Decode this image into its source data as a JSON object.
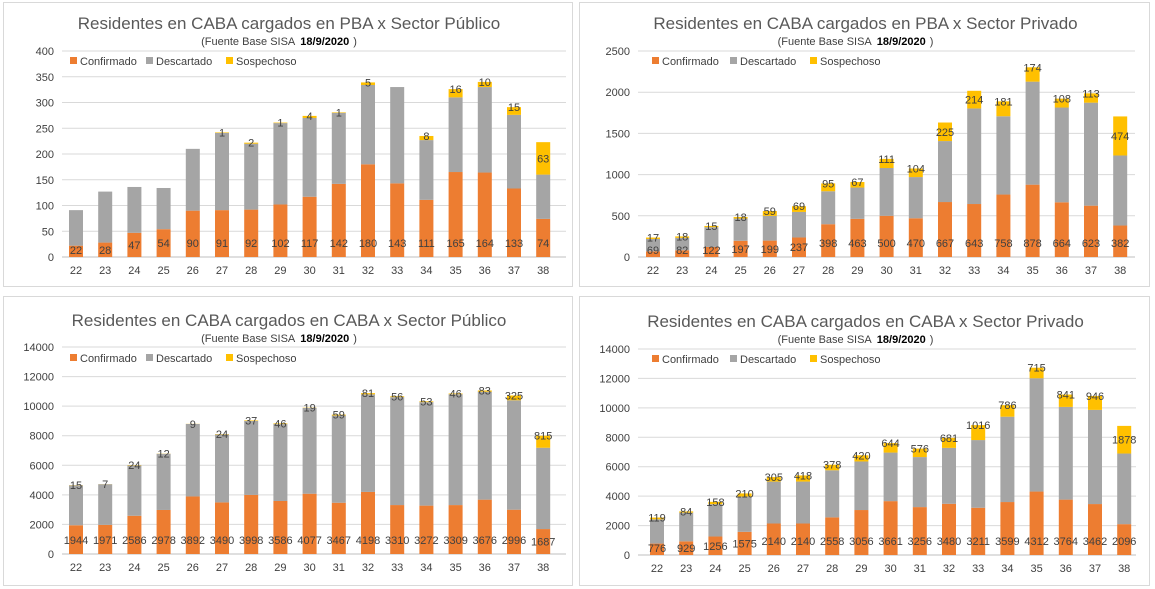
{
  "colors": {
    "confirmado": "#ED7D31",
    "descartado": "#A5A5A5",
    "sospechoso": "#FFC000",
    "grid": "#D9D9D9",
    "axis": "#BFBFBF"
  },
  "chart_data": [
    {
      "type": "bar",
      "stacked": true,
      "title": "Residentes en CABA cargados en PBA x Sector Público",
      "subtitle": "(Fuente  Base SISA",
      "date": "18/9/2020",
      "subtitle_close": ")",
      "categories": [
        "22",
        "23",
        "24",
        "25",
        "26",
        "27",
        "28",
        "29",
        "30",
        "31",
        "32",
        "33",
        "34",
        "35",
        "36",
        "37",
        "38"
      ],
      "ylim": [
        0,
        400
      ],
      "yticks": [
        "0",
        "50",
        "100",
        "150",
        "200",
        "250",
        "300",
        "350",
        "400"
      ],
      "legend_position": "top-left",
      "grid": true,
      "series": [
        {
          "name": "Confirmado",
          "values": [
            22,
            28,
            47,
            54,
            90,
            91,
            92,
            102,
            117,
            142,
            180,
            143,
            111,
            165,
            164,
            133,
            74
          ],
          "labels": [
            "22",
            "28",
            "47",
            "54",
            "90",
            "91",
            "92",
            "102",
            "117",
            "142",
            "180",
            "143",
            "111",
            "165",
            "164",
            "133",
            "74"
          ]
        },
        {
          "name": "Descartado",
          "values": [
            69,
            99,
            89,
            80,
            120,
            150,
            128,
            158,
            153,
            138,
            154,
            187,
            116,
            145,
            166,
            143,
            86
          ]
        },
        {
          "name": "Sospechoso",
          "values": [
            0,
            0,
            0,
            0,
            0,
            1,
            2,
            1,
            4,
            1,
            5,
            0,
            8,
            16,
            10,
            15,
            63
          ],
          "labels": [
            "",
            "",
            "",
            "",
            "",
            "1",
            "2",
            "1",
            "4",
            "1",
            "5",
            "",
            "8",
            "16",
            "10",
            "15",
            "63"
          ]
        }
      ]
    },
    {
      "type": "bar",
      "stacked": true,
      "title": "Residentes en CABA cargados en PBA x Sector Privado",
      "subtitle": "(Fuente  Base SISA",
      "date": "18/9/2020",
      "subtitle_close": ")",
      "categories": [
        "22",
        "23",
        "24",
        "25",
        "26",
        "27",
        "28",
        "29",
        "30",
        "31",
        "32",
        "33",
        "34",
        "35",
        "36",
        "37",
        "38"
      ],
      "ylim": [
        0,
        2500
      ],
      "yticks": [
        "0",
        "500",
        "1000",
        "1500",
        "2000",
        "2500"
      ],
      "legend_position": "top-left",
      "grid": true,
      "series": [
        {
          "name": "Confirmado",
          "values": [
            69,
            82,
            122,
            197,
            199,
            237,
            398,
            463,
            500,
            470,
            667,
            643,
            758,
            878,
            664,
            623,
            382
          ],
          "labels": [
            "69",
            "82",
            "122",
            "197",
            "199",
            "237",
            "398",
            "463",
            "500",
            "470",
            "667",
            "643",
            "758",
            "878",
            "664",
            "623",
            "382"
          ]
        },
        {
          "name": "Descartado",
          "values": [
            150,
            150,
            240,
            270,
            300,
            310,
            400,
            380,
            580,
            500,
            740,
            1160,
            950,
            1250,
            1150,
            1250,
            850
          ]
        },
        {
          "name": "Sospechoso",
          "values": [
            17,
            18,
            15,
            18,
            59,
            69,
            95,
            67,
            111,
            104,
            225,
            214,
            181,
            174,
            108,
            113,
            474
          ],
          "labels": [
            "17",
            "18",
            "15",
            "18",
            "59",
            "69",
            "95",
            "67",
            "111",
            "104",
            "225",
            "214",
            "181",
            "174",
            "108",
            "113",
            "474"
          ]
        }
      ]
    },
    {
      "type": "bar",
      "stacked": true,
      "title": "Residentes en CABA cargados en CABA x Sector Público",
      "subtitle": "(Fuente  Base SISA",
      "date": "18/9/2020",
      "subtitle_close": ")",
      "categories": [
        "22",
        "23",
        "24",
        "25",
        "26",
        "27",
        "28",
        "29",
        "30",
        "31",
        "32",
        "33",
        "34",
        "35",
        "36",
        "37",
        "38"
      ],
      "ylim": [
        0,
        14000
      ],
      "yticks": [
        "0",
        "2000",
        "4000",
        "6000",
        "8000",
        "10000",
        "12000",
        "14000"
      ],
      "legend_position": "top-left",
      "grid": true,
      "series": [
        {
          "name": "Confirmado",
          "values": [
            1944,
            1971,
            2586,
            2978,
            3892,
            3490,
            3998,
            3586,
            4077,
            3467,
            4198,
            3310,
            3272,
            3309,
            3676,
            2996,
            1687
          ],
          "labels": [
            "1944",
            "1971",
            "2586",
            "2978",
            "3892",
            "3490",
            "3998",
            "3586",
            "4077",
            "3467",
            "4198",
            "3310",
            "3272",
            "3309",
            "3676",
            "2996",
            "1687"
          ]
        },
        {
          "name": "Descartado",
          "values": [
            2700,
            2750,
            3400,
            3800,
            4900,
            4600,
            5000,
            5200,
            5800,
            5900,
            6600,
            7300,
            7000,
            7500,
            7300,
            7400,
            5500
          ]
        },
        {
          "name": "Sospechoso",
          "values": [
            15,
            7,
            24,
            12,
            9,
            24,
            37,
            46,
            19,
            59,
            81,
            56,
            53,
            46,
            83,
            325,
            815
          ],
          "labels": [
            "15",
            "7",
            "24",
            "12",
            "9",
            "24",
            "37",
            "46",
            "19",
            "59",
            "81",
            "56",
            "53",
            "46",
            "83",
            "325",
            "815"
          ]
        }
      ]
    },
    {
      "type": "bar",
      "stacked": true,
      "title": "Residentes en CABA cargados en CABA x Sector Privado",
      "subtitle": "(Fuente  Base SISA",
      "date": "18/9/2020",
      "subtitle_close": ")",
      "categories": [
        "22",
        "23",
        "24",
        "25",
        "26",
        "27",
        "28",
        "29",
        "30",
        "31",
        "32",
        "33",
        "34",
        "35",
        "36",
        "37",
        "38"
      ],
      "ylim": [
        0,
        14000
      ],
      "yticks": [
        "0",
        "2000",
        "4000",
        "6000",
        "8000",
        "10000",
        "12000",
        "14000"
      ],
      "legend_position": "top-left",
      "grid": true,
      "series": [
        {
          "name": "Confirmado",
          "values": [
            776,
            929,
            1256,
            1575,
            2140,
            2140,
            2558,
            3056,
            3661,
            3256,
            3480,
            3211,
            3599,
            4312,
            3764,
            3462,
            2096
          ],
          "labels": [
            "776",
            "929",
            "1256",
            "1575",
            "2140",
            "2140",
            "2558",
            "3056",
            "3661",
            "3256",
            "3480",
            "3211",
            "3599",
            "4312",
            "3764",
            "3462",
            "2096"
          ]
        },
        {
          "name": "Descartado",
          "values": [
            1650,
            1950,
            2200,
            2400,
            2850,
            2850,
            3200,
            3300,
            3300,
            3400,
            3800,
            4600,
            5800,
            7700,
            6300,
            6400,
            4800
          ]
        },
        {
          "name": "Sospechoso",
          "values": [
            119,
            84,
            158,
            210,
            305,
            418,
            378,
            420,
            644,
            576,
            681,
            1016,
            786,
            715,
            841,
            946,
            1878
          ],
          "labels": [
            "119",
            "84",
            "158",
            "210",
            "305",
            "418",
            "378",
            "420",
            "644",
            "576",
            "681",
            "1016",
            "786",
            "715",
            "841",
            "946",
            "1878"
          ]
        }
      ]
    }
  ]
}
